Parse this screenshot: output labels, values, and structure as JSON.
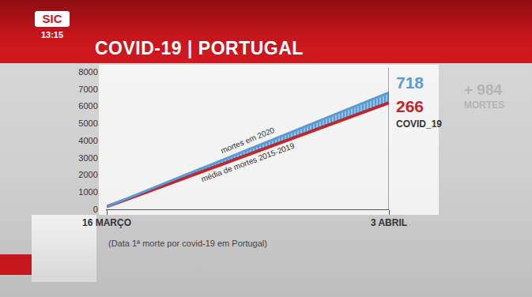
{
  "header": {
    "logo": "SIC",
    "time": "13:15",
    "title": "COVID-19 | PORTUGAL"
  },
  "chart_data": {
    "type": "line",
    "categories": [
      "16 MARÇO",
      "3 ABRIL"
    ],
    "series": [
      {
        "name": "média de mortes 2015-2019",
        "color": "#c0272d",
        "values": [
          150,
          6200
        ]
      },
      {
        "name": "mortes em 2020",
        "color": "#5b9bd5",
        "values": [
          150,
          6800
        ]
      }
    ],
    "ylim": [
      0,
      8000
    ],
    "yticks": [
      0,
      1000,
      2000,
      3000,
      4000,
      5000,
      6000,
      7000,
      8000
    ],
    "grid": false,
    "xlabel": "(Data 1ª morte por covid-19 em Portugal)",
    "annotations": [
      {
        "text": "718",
        "color": "#5b9bd5"
      },
      {
        "text": "266",
        "color": "#c0272d"
      },
      {
        "text": "COVID_19",
        "color": "#333333"
      },
      {
        "text": "+ 984",
        "color": "#b5b5b5"
      },
      {
        "text": "MORTES",
        "color": "#b5b5b5"
      }
    ]
  }
}
